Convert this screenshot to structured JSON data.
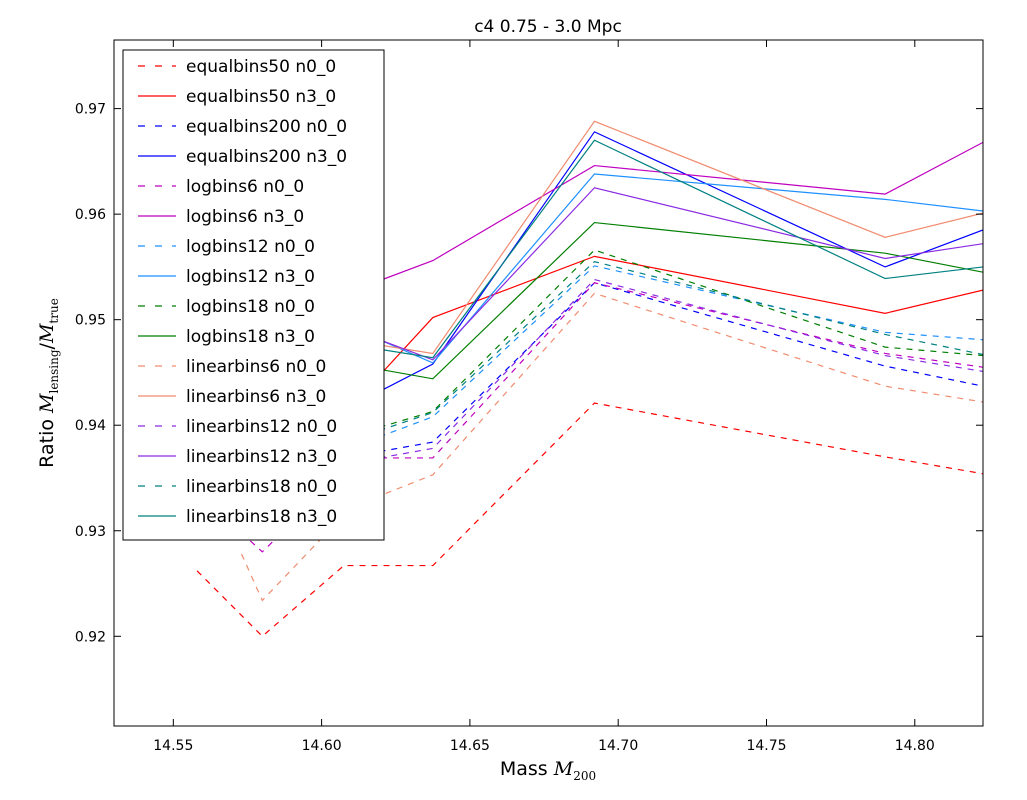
{
  "chart_data": {
    "type": "line",
    "title": "c4 0.75 - 3.0 Mpc",
    "xlabel_prefix": "Mass ",
    "xlabel_math": "M",
    "xlabel_sub": "200",
    "ylabel_prefix": "Ratio ",
    "ylabel_math_1": "M",
    "ylabel_sub_1": "lensing",
    "ylabel_slash": "/",
    "ylabel_math_2": "M",
    "ylabel_sub_2": "true",
    "xlim": [
      14.53,
      14.823
    ],
    "ylim": [
      0.9115,
      0.9765
    ],
    "xticks": [
      14.55,
      14.6,
      14.65,
      14.7,
      14.75,
      14.8
    ],
    "xtick_labels": [
      "14.55",
      "14.60",
      "14.65",
      "14.70",
      "14.75",
      "14.80"
    ],
    "yticks": [
      0.92,
      0.93,
      0.94,
      0.95,
      0.96,
      0.97
    ],
    "ytick_labels": [
      "0.92",
      "0.93",
      "0.94",
      "0.95",
      "0.96",
      "0.97"
    ],
    "legend_location": "top-left",
    "series": [
      {
        "name": "equalbins50 n0_0",
        "color": "#ff0000",
        "dash": "dashed",
        "x": [
          14.558,
          14.58,
          14.6075,
          14.6375,
          14.692,
          14.79,
          14.823
        ],
        "y": [
          0.9262,
          0.92,
          0.9267,
          0.9267,
          0.9421,
          0.937,
          0.9354
        ]
      },
      {
        "name": "equalbins50 n3_0",
        "color": "#ff0000",
        "dash": "solid",
        "x": [
          14.6195,
          14.6375,
          14.692,
          14.79,
          14.823
        ],
        "y": [
          0.9447,
          0.9502,
          0.956,
          0.9506,
          0.9528
        ]
      },
      {
        "name": "equalbins200 n0_0",
        "color": "#0000ff",
        "dash": "dashed",
        "x": [
          14.6195,
          14.6375,
          14.692,
          14.79,
          14.823
        ],
        "y": [
          0.9375,
          0.9384,
          0.9535,
          0.9456,
          0.9437
        ]
      },
      {
        "name": "equalbins200 n3_0",
        "color": "#0000ff",
        "dash": "solid",
        "x": [
          14.6195,
          14.6375,
          14.692,
          14.79,
          14.823
        ],
        "y": [
          0.9432,
          0.9458,
          0.9678,
          0.955,
          0.9585
        ]
      },
      {
        "name": "logbins6 n0_0",
        "color": "#bf00bf",
        "dash": "dashed",
        "x": [
          14.573,
          14.58,
          14.5855,
          14.6195,
          14.6375,
          14.692,
          14.79,
          14.823
        ],
        "y": [
          0.9298,
          0.928,
          0.9295,
          0.9369,
          0.9369,
          0.9535,
          0.9468,
          0.9455
        ]
      },
      {
        "name": "logbins6 n3_0",
        "color": "#bf00bf",
        "dash": "solid",
        "x": [
          14.6195,
          14.6375,
          14.692,
          14.79,
          14.823
        ],
        "y": [
          0.9537,
          0.9556,
          0.9646,
          0.9619,
          0.9668
        ]
      },
      {
        "name": "logbins12 n0_0",
        "color": "#1e90ff",
        "dash": "dashed",
        "x": [
          14.6195,
          14.6375,
          14.692,
          14.79,
          14.823
        ],
        "y": [
          0.9389,
          0.9408,
          0.9551,
          0.9488,
          0.9481
        ]
      },
      {
        "name": "logbins12 n3_0",
        "color": "#1e90ff",
        "dash": "solid",
        "x": [
          14.6195,
          14.6375,
          14.692,
          14.79,
          14.823
        ],
        "y": [
          0.9481,
          0.9459,
          0.9638,
          0.9614,
          0.9603
        ]
      },
      {
        "name": "logbins18 n0_0",
        "color": "#007f00",
        "dash": "dashed",
        "x": [
          14.6195,
          14.6375,
          14.692,
          14.79,
          14.823
        ],
        "y": [
          0.9398,
          0.9413,
          0.9566,
          0.9474,
          0.9466
        ]
      },
      {
        "name": "logbins18 n3_0",
        "color": "#007f00",
        "dash": "solid",
        "x": [
          14.6195,
          14.6375,
          14.692,
          14.79,
          14.823
        ],
        "y": [
          0.9453,
          0.9444,
          0.9592,
          0.9563,
          0.9545
        ]
      },
      {
        "name": "linearbins6 n0_0",
        "color": "#f08c70",
        "dash": "dashed",
        "x": [
          14.573,
          14.58,
          14.6075,
          14.6195,
          14.6375,
          14.692,
          14.79,
          14.823
        ],
        "y": [
          0.9278,
          0.9234,
          0.9315,
          0.9333,
          0.9353,
          0.9525,
          0.9437,
          0.9422
        ]
      },
      {
        "name": "linearbins6 n3_0",
        "color": "#f08c70",
        "dash": "solid",
        "x": [
          14.6195,
          14.6375,
          14.692,
          14.79,
          14.823
        ],
        "y": [
          0.9476,
          0.9468,
          0.9688,
          0.9578,
          0.9601
        ]
      },
      {
        "name": "linearbins12 n0_0",
        "color": "#8a2be2",
        "dash": "dashed",
        "x": [
          14.6195,
          14.6375,
          14.692,
          14.79,
          14.823
        ],
        "y": [
          0.9369,
          0.9378,
          0.9538,
          0.9466,
          0.9451
        ]
      },
      {
        "name": "linearbins12 n3_0",
        "color": "#8a2be2",
        "dash": "solid",
        "x": [
          14.6195,
          14.6375,
          14.692,
          14.79,
          14.823
        ],
        "y": [
          0.9481,
          0.9462,
          0.9625,
          0.9558,
          0.9572
        ]
      },
      {
        "name": "linearbins18 n0_0",
        "color": "#008080",
        "dash": "dashed",
        "x": [
          14.6195,
          14.6375,
          14.692,
          14.79,
          14.823
        ],
        "y": [
          0.9395,
          0.9412,
          0.9555,
          0.9486,
          0.9467
        ]
      },
      {
        "name": "linearbins18 n3_0",
        "color": "#008080",
        "dash": "solid",
        "x": [
          14.6195,
          14.6375,
          14.692,
          14.79,
          14.823
        ],
        "y": [
          0.9472,
          0.9464,
          0.967,
          0.9539,
          0.955
        ]
      }
    ]
  }
}
